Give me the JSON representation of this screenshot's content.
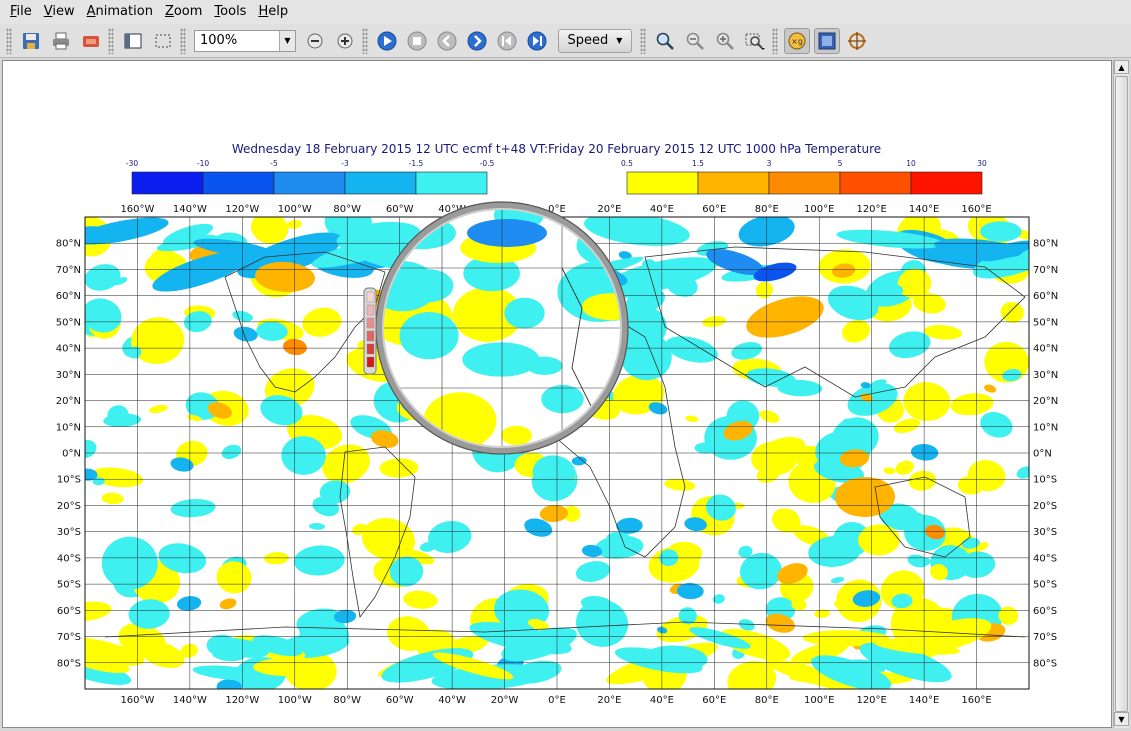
{
  "menu": {
    "items": [
      {
        "label": "File",
        "ul": "F",
        "rest": "ile"
      },
      {
        "label": "View",
        "ul": "V",
        "rest": "iew"
      },
      {
        "label": "Animation",
        "ul": "A",
        "rest": "nimation"
      },
      {
        "label": "Zoom",
        "ul": "Z",
        "rest": "oom"
      },
      {
        "label": "Tools",
        "ul": "T",
        "rest": "ools"
      },
      {
        "label": "Help",
        "ul": "H",
        "rest": "elp"
      }
    ]
  },
  "toolbar": {
    "zoom_value": "100%",
    "speed_label": "Speed",
    "icons": [
      "save-icon",
      "print-icon",
      "export-icon",
      "sidebar-icon",
      "select-area-icon",
      "zoom-out-icon",
      "zoom-in-icon",
      "play-icon",
      "stop-icon",
      "step-back-icon",
      "step-forward-icon",
      "first-frame-icon",
      "last-frame-icon",
      "zoom-icon",
      "zoom-minus-icon",
      "zoom-plus-icon",
      "zoom-area-icon",
      "magnifier-icon",
      "layers-icon",
      "crosshair-icon"
    ]
  },
  "plot": {
    "title": "Wednesday 18 February 2015 12 UTC ecmf t+48 VT:Friday 20 February 2015 12 UTC 1000 hPa  Temperature",
    "legend_negative": {
      "labels": [
        "-30",
        "-10",
        "-5",
        "-3",
        "-1.5",
        "-0.5"
      ],
      "colors": [
        "#0a1ef0",
        "#0a55f0",
        "#1e8cf0",
        "#14b4f0",
        "#3ff0f0"
      ]
    },
    "legend_positive": {
      "labels": [
        "0.5",
        "1.5",
        "3",
        "5",
        "10",
        "30"
      ],
      "colors": [
        "#ffff00",
        "#ffb400",
        "#ff8c00",
        "#ff5000",
        "#ff1400"
      ]
    },
    "lon_labels": [
      "160°W",
      "140°W",
      "120°W",
      "100°W",
      "80°W",
      "60°W",
      "40°W",
      "20°W",
      "0°E",
      "20°E",
      "40°E",
      "60°E",
      "80°E",
      "100°E",
      "120°E",
      "140°E",
      "160°E"
    ],
    "lat_labels": [
      "80°N",
      "70°N",
      "60°N",
      "50°N",
      "40°N",
      "30°N",
      "20°N",
      "10°N",
      "0°N",
      "10°S",
      "20°S",
      "30°S",
      "40°S",
      "50°S",
      "60°S",
      "70°S",
      "80°S"
    ]
  }
}
